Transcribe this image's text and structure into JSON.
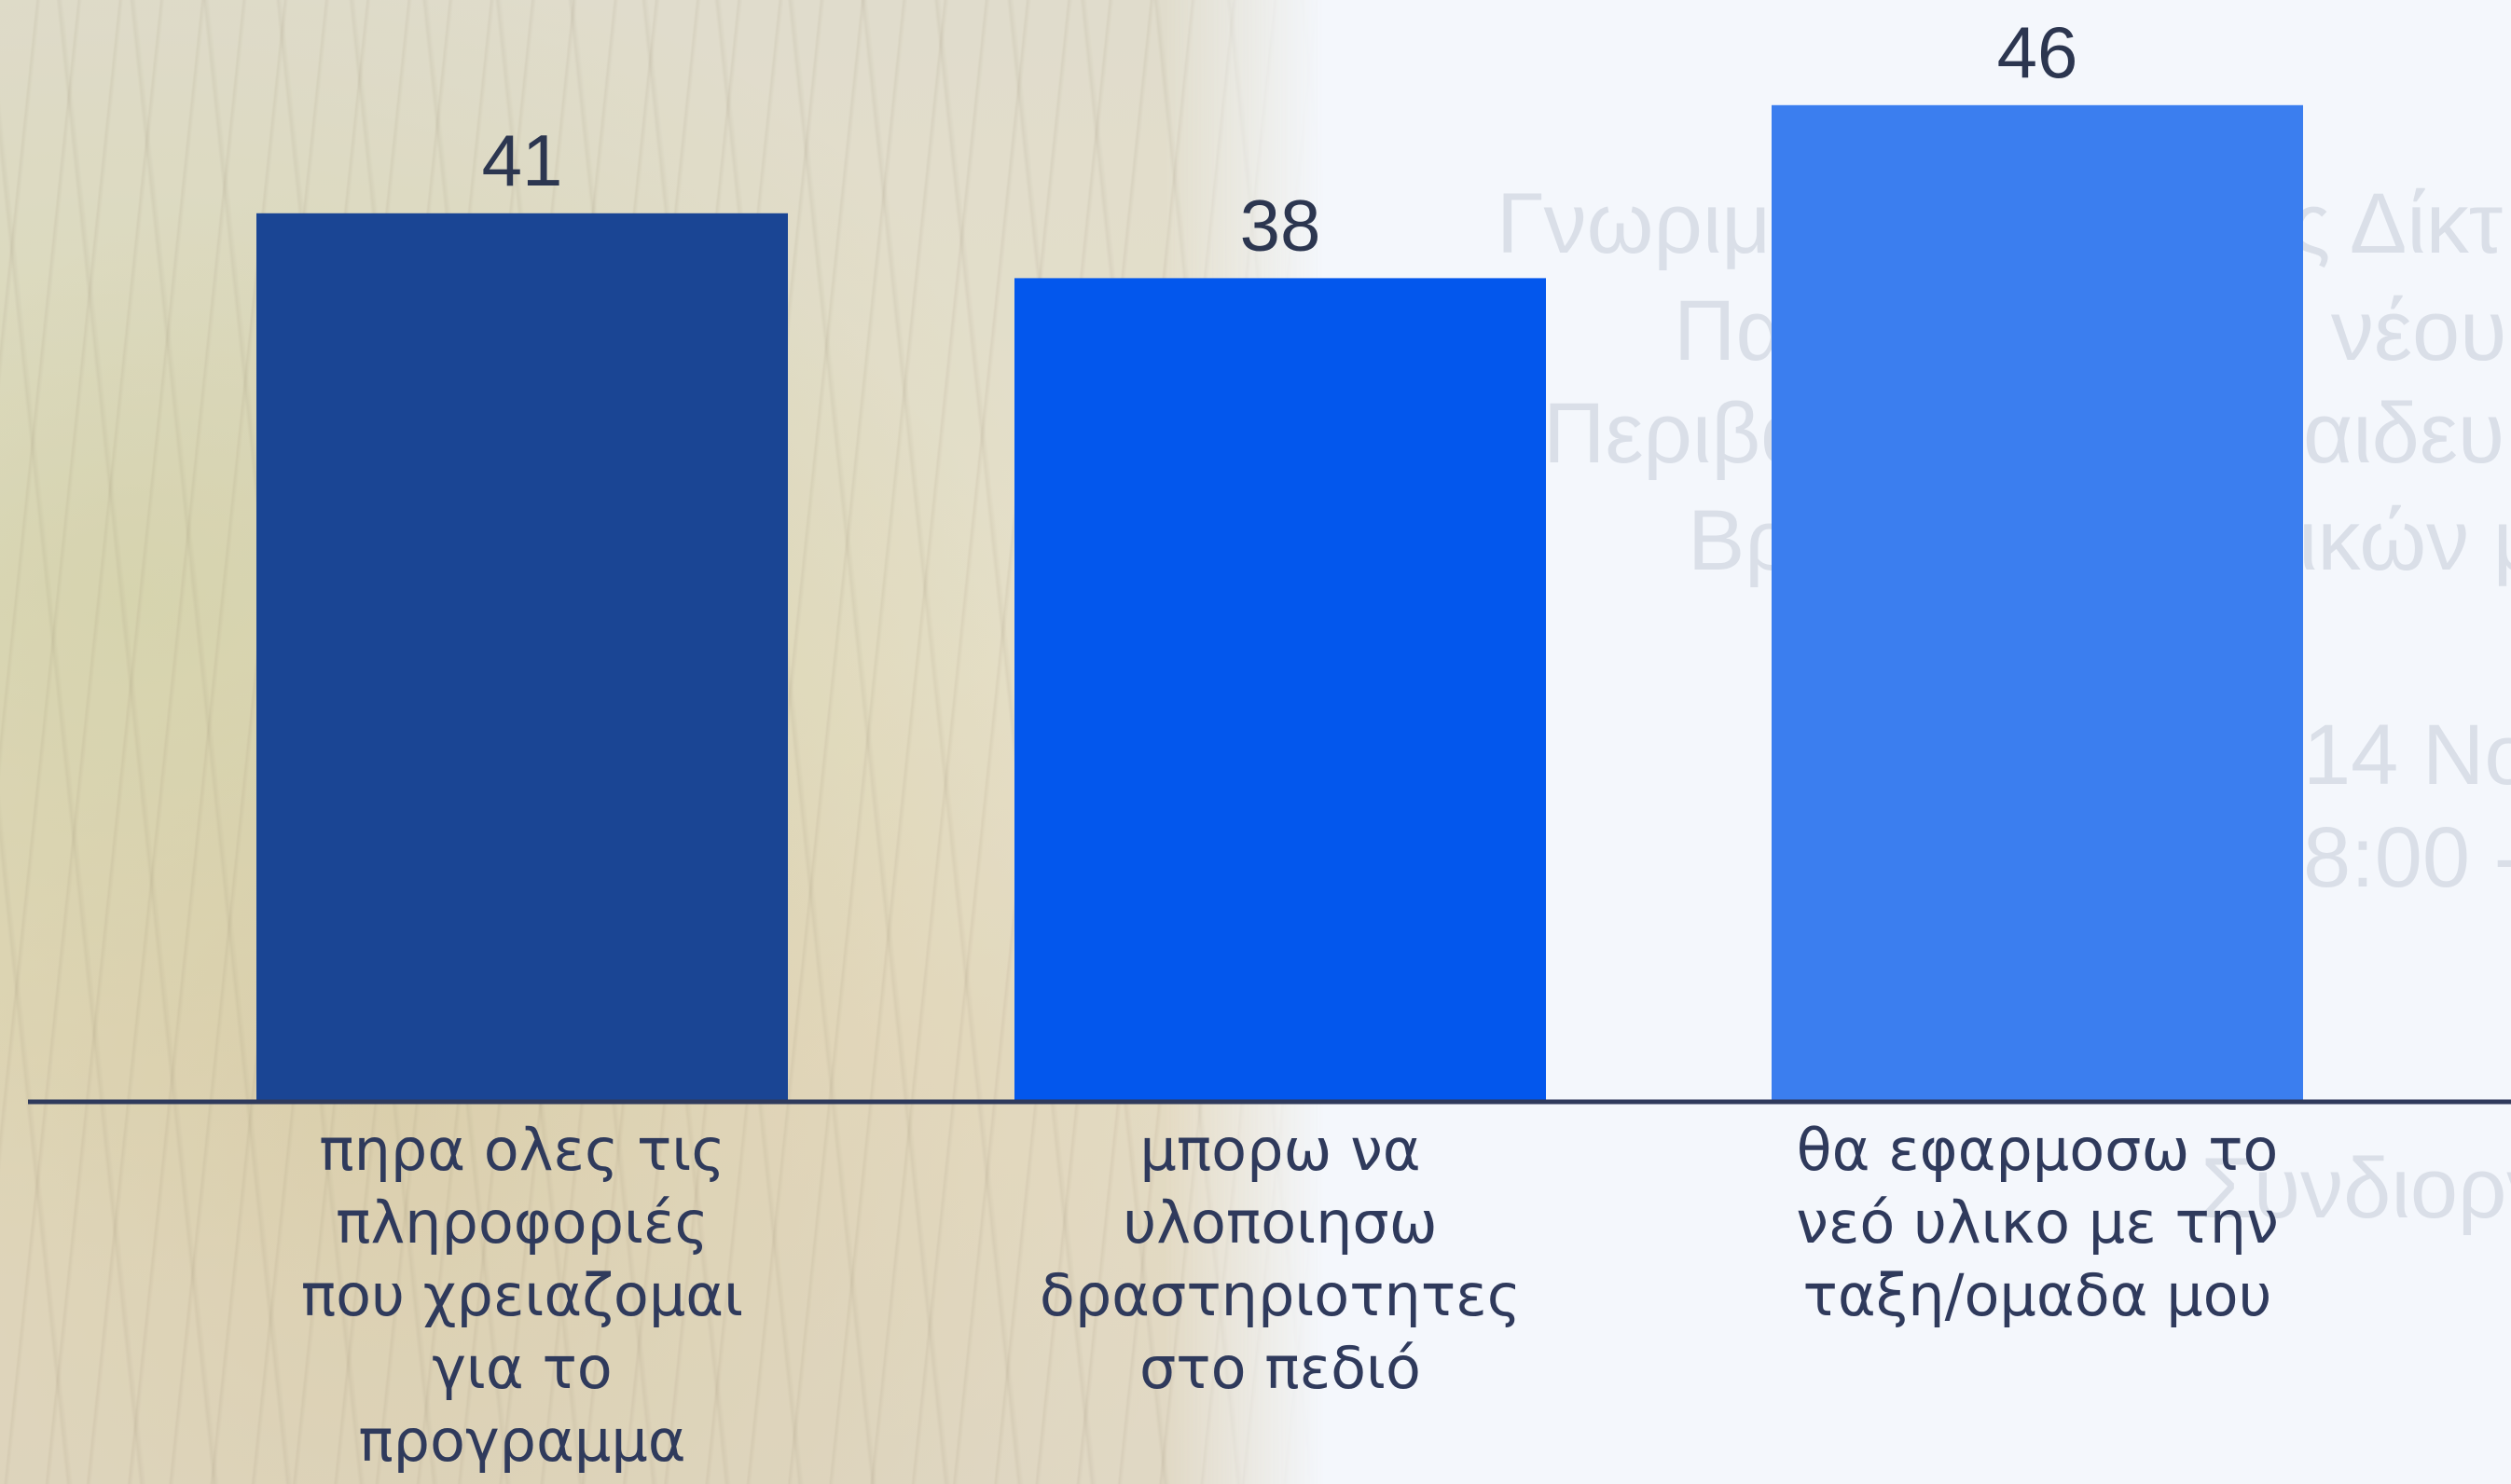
{
  "background": {
    "ghost_lines": [
      {
        "text": "Γνωριμί",
        "line": 0
      },
      {
        "text": "ς Δίκτ",
        "line": 0
      },
      {
        "text": "Πα",
        "line": 1
      },
      {
        "text": "νέου",
        "line": 1
      },
      {
        "text": "Περιβα",
        "line": 2
      },
      {
        "text": "αιδευ",
        "line": 2
      },
      {
        "text": "Βρ",
        "line": 3
      },
      {
        "text": "ικών μ",
        "line": 3
      },
      {
        "text": "14 Νο",
        "line": 4
      },
      {
        "text": "8:00 -",
        "line": 5
      },
      {
        "text": "Συνδιορν",
        "line": 6
      }
    ]
  },
  "colors": {
    "axis": "#2f3a5c",
    "bars": [
      "#1a4594",
      "#0357ed",
      "#3b7eef"
    ]
  },
  "chart_data": {
    "type": "bar",
    "categories": [
      [
        "πηρα ολες τις",
        "πληροφοριές",
        "που χρειαζομαι",
        "για το",
        "προγραμμα"
      ],
      [
        "μπορω να",
        "υλοποιησω",
        "δραστηριοτητες",
        "στο πεδιό"
      ],
      [
        "θα εφαρμοσω το",
        "νεό υλικο με την",
        "ταξη/ομαδα μου"
      ]
    ],
    "values": [
      41,
      38,
      46
    ],
    "data_labels": [
      "41",
      "38",
      "46"
    ],
    "ylim": [
      0,
      50
    ],
    "grid": false,
    "legend": "none",
    "title": "",
    "xlabel": "",
    "ylabel": ""
  }
}
